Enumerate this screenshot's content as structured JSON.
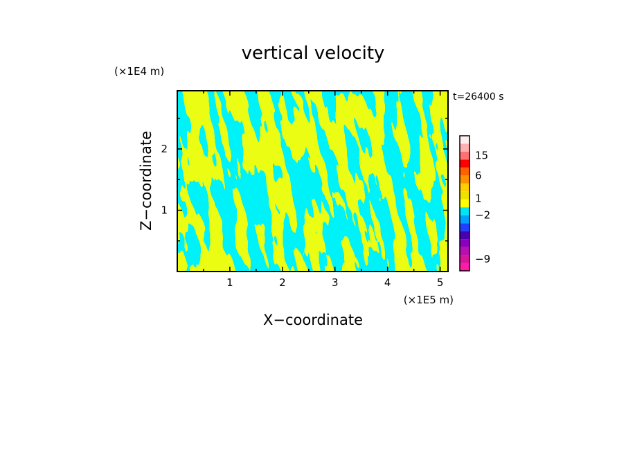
{
  "chart_data": {
    "type": "heatmap",
    "title": "vertical velocity",
    "xlabel": "X−coordinate",
    "ylabel": "Z−coordinate",
    "x_unit_label": "(×1E5 m)",
    "y_unit_label": "(×1E4 m)",
    "time_label": "t=26400 s",
    "xlim": [
      0,
      5.15
    ],
    "ylim": [
      0,
      2.95
    ],
    "x_ticks": [
      {
        "value": 1,
        "label": "1"
      },
      {
        "value": 2,
        "label": "2"
      },
      {
        "value": 3,
        "label": "3"
      },
      {
        "value": 4,
        "label": "4"
      },
      {
        "value": 5,
        "label": "5"
      }
    ],
    "y_ticks": [
      {
        "value": 1,
        "label": "1"
      },
      {
        "value": 2,
        "label": "2"
      }
    ],
    "grid": false,
    "dominant_colors": {
      "positive": "#ffff00",
      "negative": "#00e5f5"
    },
    "colorbar": {
      "levels": [
        {
          "color": "#ff1aa8"
        },
        {
          "color": "#d6169a"
        },
        {
          "color": "#b80fae"
        },
        {
          "color": "#8a00c0"
        },
        {
          "color": "#4a00b0"
        },
        {
          "color": "#2040ff"
        },
        {
          "color": "#00a0ff"
        },
        {
          "color": "#00e5f5"
        },
        {
          "color": "#ffff00"
        },
        {
          "color": "#f0e000"
        },
        {
          "color": "#ffd000"
        },
        {
          "color": "#ff9000"
        },
        {
          "color": "#ff6000"
        },
        {
          "color": "#ff0000"
        },
        {
          "color": "#ff7070"
        },
        {
          "color": "#ffb0b0"
        },
        {
          "color": "#ffeeee"
        }
      ],
      "tick_labels": [
        {
          "label": "15",
          "index": 14
        },
        {
          "label": "6",
          "index": 11.5
        },
        {
          "label": "1",
          "index": 8.6
        },
        {
          "label": "−2",
          "index": 6.5
        },
        {
          "label": "−9",
          "index": 1
        }
      ]
    }
  }
}
